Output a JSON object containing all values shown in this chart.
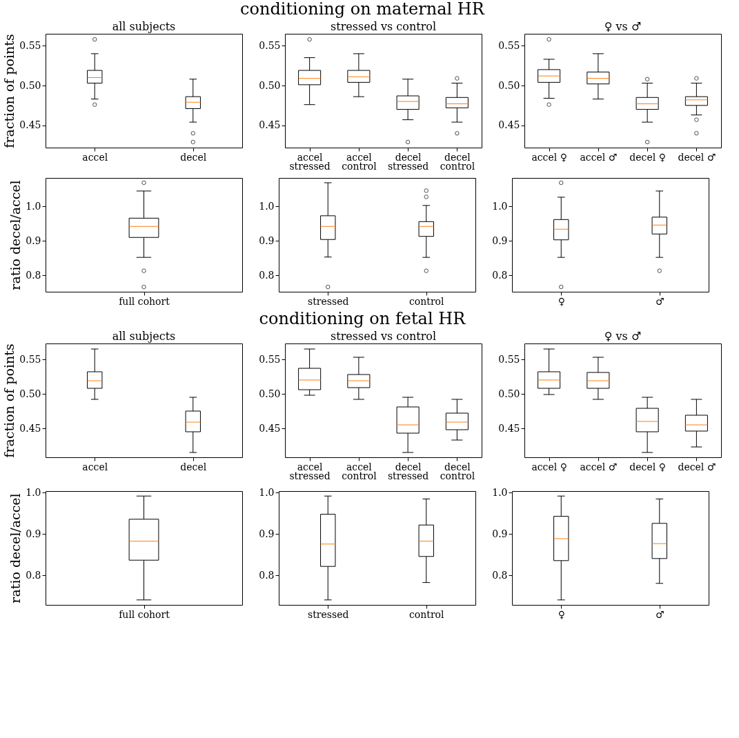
{
  "chart_data": [
    {
      "type": "box",
      "title": "all subjects",
      "ylabel": "fraction of points",
      "annotations": [
        "conditioning on maternal HR"
      ],
      "categories": [
        "accel",
        "decel"
      ],
      "ylim": [
        0.422,
        0.565
      ],
      "yticks": [
        {
          "value": 0.45,
          "label": "0.45"
        },
        {
          "value": 0.5,
          "label": "0.50"
        },
        {
          "value": 0.55,
          "label": "0.55"
        }
      ],
      "grid": false,
      "boxes": [
        {
          "low": 0.483,
          "q1": 0.503,
          "median": 0.51,
          "q3": 0.519,
          "high": 0.54,
          "outliers": [
            0.558,
            0.476
          ]
        },
        {
          "low": 0.454,
          "q1": 0.471,
          "median": 0.479,
          "q3": 0.486,
          "high": 0.508,
          "outliers": [
            0.44,
            0.429
          ]
        }
      ]
    },
    {
      "type": "box",
      "title": "stressed vs control",
      "categories": [
        "accel\nstressed",
        "accel\ncontrol",
        "decel\nstressed",
        "decel\ncontrol"
      ],
      "ylim": [
        0.422,
        0.565
      ],
      "yticks": [
        {
          "value": 0.45,
          "label": "0.45"
        },
        {
          "value": 0.5,
          "label": "0.50"
        },
        {
          "value": 0.55,
          "label": "0.55"
        }
      ],
      "grid": false,
      "boxes": [
        {
          "low": 0.476,
          "q1": 0.501,
          "median": 0.509,
          "q3": 0.519,
          "high": 0.535,
          "outliers": [
            0.558
          ]
        },
        {
          "low": 0.486,
          "q1": 0.504,
          "median": 0.511,
          "q3": 0.519,
          "high": 0.54
        },
        {
          "low": 0.457,
          "q1": 0.47,
          "median": 0.48,
          "q3": 0.487,
          "high": 0.508,
          "outliers": [
            0.429
          ]
        },
        {
          "low": 0.454,
          "q1": 0.472,
          "median": 0.477,
          "q3": 0.485,
          "high": 0.503,
          "outliers": [
            0.509,
            0.44
          ]
        }
      ]
    },
    {
      "type": "box",
      "title": "♀ vs ♂",
      "categories": [
        "accel ♀",
        "accel ♂",
        "decel ♀",
        "decel ♂"
      ],
      "ylim": [
        0.422,
        0.565
      ],
      "yticks": [
        {
          "value": 0.45,
          "label": "0.45"
        },
        {
          "value": 0.5,
          "label": "0.50"
        },
        {
          "value": 0.55,
          "label": "0.55"
        }
      ],
      "grid": false,
      "boxes": [
        {
          "low": 0.484,
          "q1": 0.504,
          "median": 0.512,
          "q3": 0.52,
          "high": 0.533,
          "outliers": [
            0.558,
            0.476
          ]
        },
        {
          "low": 0.483,
          "q1": 0.502,
          "median": 0.509,
          "q3": 0.517,
          "high": 0.54
        },
        {
          "low": 0.454,
          "q1": 0.47,
          "median": 0.477,
          "q3": 0.485,
          "high": 0.503,
          "outliers": [
            0.508,
            0.429
          ]
        },
        {
          "low": 0.463,
          "q1": 0.475,
          "median": 0.482,
          "q3": 0.486,
          "high": 0.503,
          "outliers": [
            0.509,
            0.457,
            0.44
          ]
        }
      ]
    },
    {
      "type": "box",
      "ylabel": "ratio decel/accel",
      "categories": [
        "full cohort"
      ],
      "ylim": [
        0.752,
        1.083
      ],
      "yticks": [
        {
          "value": 0.8,
          "label": "0.8"
        },
        {
          "value": 0.9,
          "label": "0.9"
        },
        {
          "value": 1.0,
          "label": "1.0"
        }
      ],
      "grid": false,
      "boxes": [
        {
          "low": 0.852,
          "q1": 0.91,
          "median": 0.942,
          "q3": 0.966,
          "high": 1.045,
          "outliers": [
            1.069,
            0.813,
            0.766
          ]
        }
      ]
    },
    {
      "type": "box",
      "categories": [
        "stressed",
        "control"
      ],
      "ylim": [
        0.752,
        1.083
      ],
      "yticks": [
        {
          "value": 0.8,
          "label": "0.8"
        },
        {
          "value": 0.9,
          "label": "0.9"
        },
        {
          "value": 1.0,
          "label": "1.0"
        }
      ],
      "grid": false,
      "boxes": [
        {
          "low": 0.853,
          "q1": 0.904,
          "median": 0.942,
          "q3": 0.973,
          "high": 1.069,
          "outliers": [
            0.766
          ]
        },
        {
          "low": 0.852,
          "q1": 0.913,
          "median": 0.942,
          "q3": 0.956,
          "high": 1.003,
          "outliers": [
            1.046,
            1.028,
            0.813
          ]
        }
      ]
    },
    {
      "type": "box",
      "categories": [
        "♀",
        "♂"
      ],
      "ylim": [
        0.752,
        1.083
      ],
      "yticks": [
        {
          "value": 0.8,
          "label": "0.8"
        },
        {
          "value": 0.9,
          "label": "0.9"
        },
        {
          "value": 1.0,
          "label": "1.0"
        }
      ],
      "grid": false,
      "boxes": [
        {
          "low": 0.852,
          "q1": 0.903,
          "median": 0.934,
          "q3": 0.962,
          "high": 1.027,
          "outliers": [
            1.069,
            0.766
          ]
        },
        {
          "low": 0.852,
          "q1": 0.92,
          "median": 0.946,
          "q3": 0.969,
          "high": 1.045,
          "outliers": [
            0.813
          ]
        }
      ]
    },
    {
      "type": "box",
      "title": "all subjects",
      "ylabel": "fraction of points",
      "annotations": [
        "conditioning on fetal HR"
      ],
      "categories": [
        "accel",
        "decel"
      ],
      "ylim": [
        0.408,
        0.573
      ],
      "yticks": [
        {
          "value": 0.45,
          "label": "0.45"
        },
        {
          "value": 0.5,
          "label": "0.50"
        },
        {
          "value": 0.55,
          "label": "0.55"
        }
      ],
      "grid": false,
      "boxes": [
        {
          "low": 0.492,
          "q1": 0.508,
          "median": 0.519,
          "q3": 0.532,
          "high": 0.565
        },
        {
          "low": 0.415,
          "q1": 0.445,
          "median": 0.459,
          "q3": 0.475,
          "high": 0.495
        }
      ]
    },
    {
      "type": "box",
      "title": "stressed vs control",
      "categories": [
        "accel\nstressed",
        "accel\ncontrol",
        "decel\nstressed",
        "decel\ncontrol"
      ],
      "ylim": [
        0.408,
        0.573
      ],
      "yticks": [
        {
          "value": 0.45,
          "label": "0.45"
        },
        {
          "value": 0.5,
          "label": "0.50"
        },
        {
          "value": 0.55,
          "label": "0.55"
        }
      ],
      "grid": false,
      "boxes": [
        {
          "low": 0.498,
          "q1": 0.506,
          "median": 0.52,
          "q3": 0.537,
          "high": 0.565
        },
        {
          "low": 0.492,
          "q1": 0.509,
          "median": 0.519,
          "q3": 0.528,
          "high": 0.553
        },
        {
          "low": 0.415,
          "q1": 0.443,
          "median": 0.455,
          "q3": 0.481,
          "high": 0.495
        },
        {
          "low": 0.433,
          "q1": 0.448,
          "median": 0.459,
          "q3": 0.472,
          "high": 0.492
        }
      ]
    },
    {
      "type": "box",
      "title": "♀ vs ♂",
      "categories": [
        "accel ♀",
        "accel ♂",
        "decel ♀",
        "decel ♂"
      ],
      "ylim": [
        0.408,
        0.573
      ],
      "yticks": [
        {
          "value": 0.45,
          "label": "0.45"
        },
        {
          "value": 0.5,
          "label": "0.50"
        },
        {
          "value": 0.55,
          "label": "0.55"
        }
      ],
      "grid": false,
      "boxes": [
        {
          "low": 0.499,
          "q1": 0.508,
          "median": 0.52,
          "q3": 0.532,
          "high": 0.565
        },
        {
          "low": 0.492,
          "q1": 0.508,
          "median": 0.519,
          "q3": 0.531,
          "high": 0.553
        },
        {
          "low": 0.415,
          "q1": 0.445,
          "median": 0.46,
          "q3": 0.479,
          "high": 0.495
        },
        {
          "low": 0.423,
          "q1": 0.446,
          "median": 0.455,
          "q3": 0.469,
          "high": 0.492
        }
      ]
    },
    {
      "type": "box",
      "ylabel": "ratio decel/accel",
      "categories": [
        "full cohort"
      ],
      "ylim": [
        0.729,
        1.004
      ],
      "yticks": [
        {
          "value": 0.8,
          "label": "0.8"
        },
        {
          "value": 0.9,
          "label": "0.9"
        },
        {
          "value": 1.0,
          "label": "1.0"
        }
      ],
      "grid": false,
      "boxes": [
        {
          "low": 0.741,
          "q1": 0.837,
          "median": 0.883,
          "q3": 0.936,
          "high": 0.992
        }
      ]
    },
    {
      "type": "box",
      "categories": [
        "stressed",
        "control"
      ],
      "ylim": [
        0.729,
        1.004
      ],
      "yticks": [
        {
          "value": 0.8,
          "label": "0.8"
        },
        {
          "value": 0.9,
          "label": "0.9"
        },
        {
          "value": 1.0,
          "label": "1.0"
        }
      ],
      "grid": false,
      "boxes": [
        {
          "low": 0.741,
          "q1": 0.822,
          "median": 0.876,
          "q3": 0.948,
          "high": 0.992
        },
        {
          "low": 0.783,
          "q1": 0.846,
          "median": 0.883,
          "q3": 0.922,
          "high": 0.985
        }
      ]
    },
    {
      "type": "box",
      "categories": [
        "♀",
        "♂"
      ],
      "ylim": [
        0.729,
        1.004
      ],
      "yticks": [
        {
          "value": 0.8,
          "label": "0.8"
        },
        {
          "value": 0.9,
          "label": "0.9"
        },
        {
          "value": 1.0,
          "label": "1.0"
        }
      ],
      "grid": false,
      "boxes": [
        {
          "low": 0.741,
          "q1": 0.836,
          "median": 0.889,
          "q3": 0.943,
          "high": 0.992
        },
        {
          "low": 0.781,
          "q1": 0.841,
          "median": 0.877,
          "q3": 0.926,
          "high": 0.985
        }
      ]
    }
  ]
}
